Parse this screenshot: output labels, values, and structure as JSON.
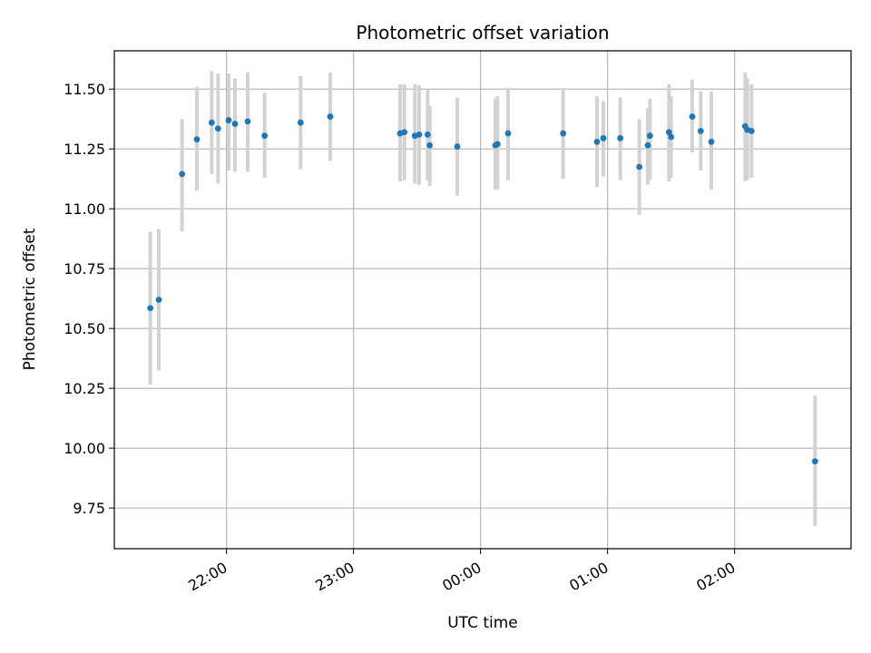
{
  "chart_data": {
    "type": "scatter",
    "title": "Photometric offset variation",
    "xlabel": "UTC time",
    "ylabel": "Photometric offset",
    "x_ticks": [
      "22:00",
      "23:00",
      "00:00",
      "01:00",
      "02:00"
    ],
    "y_ticks": [
      "9.75",
      "10.00",
      "10.25",
      "10.50",
      "10.75",
      "11.00",
      "11.25",
      "11.50"
    ],
    "xlim": [
      "21:07",
      "02:55"
    ],
    "ylim": [
      9.58,
      11.66
    ],
    "grid": true,
    "series": [
      {
        "style": "points-with-error-bars",
        "point_color": "#1f77b4",
        "errorbar_color": "#d3d3d3",
        "points": [
          {
            "x": "21:24",
            "y": 10.585,
            "low": 10.265,
            "high": 10.905
          },
          {
            "x": "21:28",
            "y": 10.62,
            "low": 10.325,
            "high": 10.915
          },
          {
            "x": "21:39",
            "y": 11.145,
            "low": 10.905,
            "high": 11.375
          },
          {
            "x": "21:46",
            "y": 11.29,
            "low": 11.075,
            "high": 11.51
          },
          {
            "x": "21:53",
            "y": 11.36,
            "low": 11.145,
            "high": 11.575
          },
          {
            "x": "21:56",
            "y": 11.335,
            "low": 11.105,
            "high": 11.565
          },
          {
            "x": "22:01",
            "y": 11.37,
            "low": 11.16,
            "high": 11.565
          },
          {
            "x": "22:04",
            "y": 11.355,
            "low": 11.155,
            "high": 11.545
          },
          {
            "x": "22:10",
            "y": 11.365,
            "low": 11.155,
            "high": 11.57
          },
          {
            "x": "22:18",
            "y": 11.305,
            "low": 11.13,
            "high": 11.485
          },
          {
            "x": "22:35",
            "y": 11.36,
            "low": 11.165,
            "high": 11.555
          },
          {
            "x": "22:49",
            "y": 11.385,
            "low": 11.2,
            "high": 11.57
          },
          {
            "x": "23:22",
            "y": 11.315,
            "low": 11.115,
            "high": 11.52
          },
          {
            "x": "23:24",
            "y": 11.32,
            "low": 11.12,
            "high": 11.52
          },
          {
            "x": "23:29",
            "y": 11.305,
            "low": 11.105,
            "high": 11.52
          },
          {
            "x": "23:31",
            "y": 11.31,
            "low": 11.1,
            "high": 11.515
          },
          {
            "x": "23:35",
            "y": 11.31,
            "low": 11.12,
            "high": 11.5
          },
          {
            "x": "23:36",
            "y": 11.265,
            "low": 11.095,
            "high": 11.43
          },
          {
            "x": "23:49",
            "y": 11.26,
            "low": 11.055,
            "high": 11.465
          },
          {
            "x": "00:07",
            "y": 11.265,
            "low": 11.08,
            "high": 11.46
          },
          {
            "x": "00:08",
            "y": 11.27,
            "low": 11.08,
            "high": 11.47
          },
          {
            "x": "00:13",
            "y": 11.315,
            "low": 11.12,
            "high": 11.505
          },
          {
            "x": "00:39",
            "y": 11.315,
            "low": 11.125,
            "high": 11.505
          },
          {
            "x": "00:55",
            "y": 11.28,
            "low": 11.09,
            "high": 11.47
          },
          {
            "x": "00:58",
            "y": 11.295,
            "low": 11.135,
            "high": 11.45
          },
          {
            "x": "01:06",
            "y": 11.295,
            "low": 11.12,
            "high": 11.465
          },
          {
            "x": "01:15",
            "y": 11.175,
            "low": 10.975,
            "high": 11.375
          },
          {
            "x": "01:19",
            "y": 11.265,
            "low": 11.1,
            "high": 11.42
          },
          {
            "x": "01:20",
            "y": 11.305,
            "low": 11.12,
            "high": 11.46
          },
          {
            "x": "01:29",
            "y": 11.32,
            "low": 11.115,
            "high": 11.52
          },
          {
            "x": "01:30",
            "y": 11.3,
            "low": 11.13,
            "high": 11.47
          },
          {
            "x": "01:40",
            "y": 11.385,
            "low": 11.235,
            "high": 11.54
          },
          {
            "x": "01:44",
            "y": 11.325,
            "low": 11.16,
            "high": 11.49
          },
          {
            "x": "01:49",
            "y": 11.28,
            "low": 11.08,
            "high": 11.49
          },
          {
            "x": "02:05",
            "y": 11.345,
            "low": 11.115,
            "high": 11.57
          },
          {
            "x": "02:06",
            "y": 11.33,
            "low": 11.12,
            "high": 11.545
          },
          {
            "x": "02:08",
            "y": 11.325,
            "low": 11.13,
            "high": 11.52
          },
          {
            "x": "02:38",
            "y": 9.945,
            "low": 9.675,
            "high": 10.22
          }
        ]
      }
    ]
  }
}
